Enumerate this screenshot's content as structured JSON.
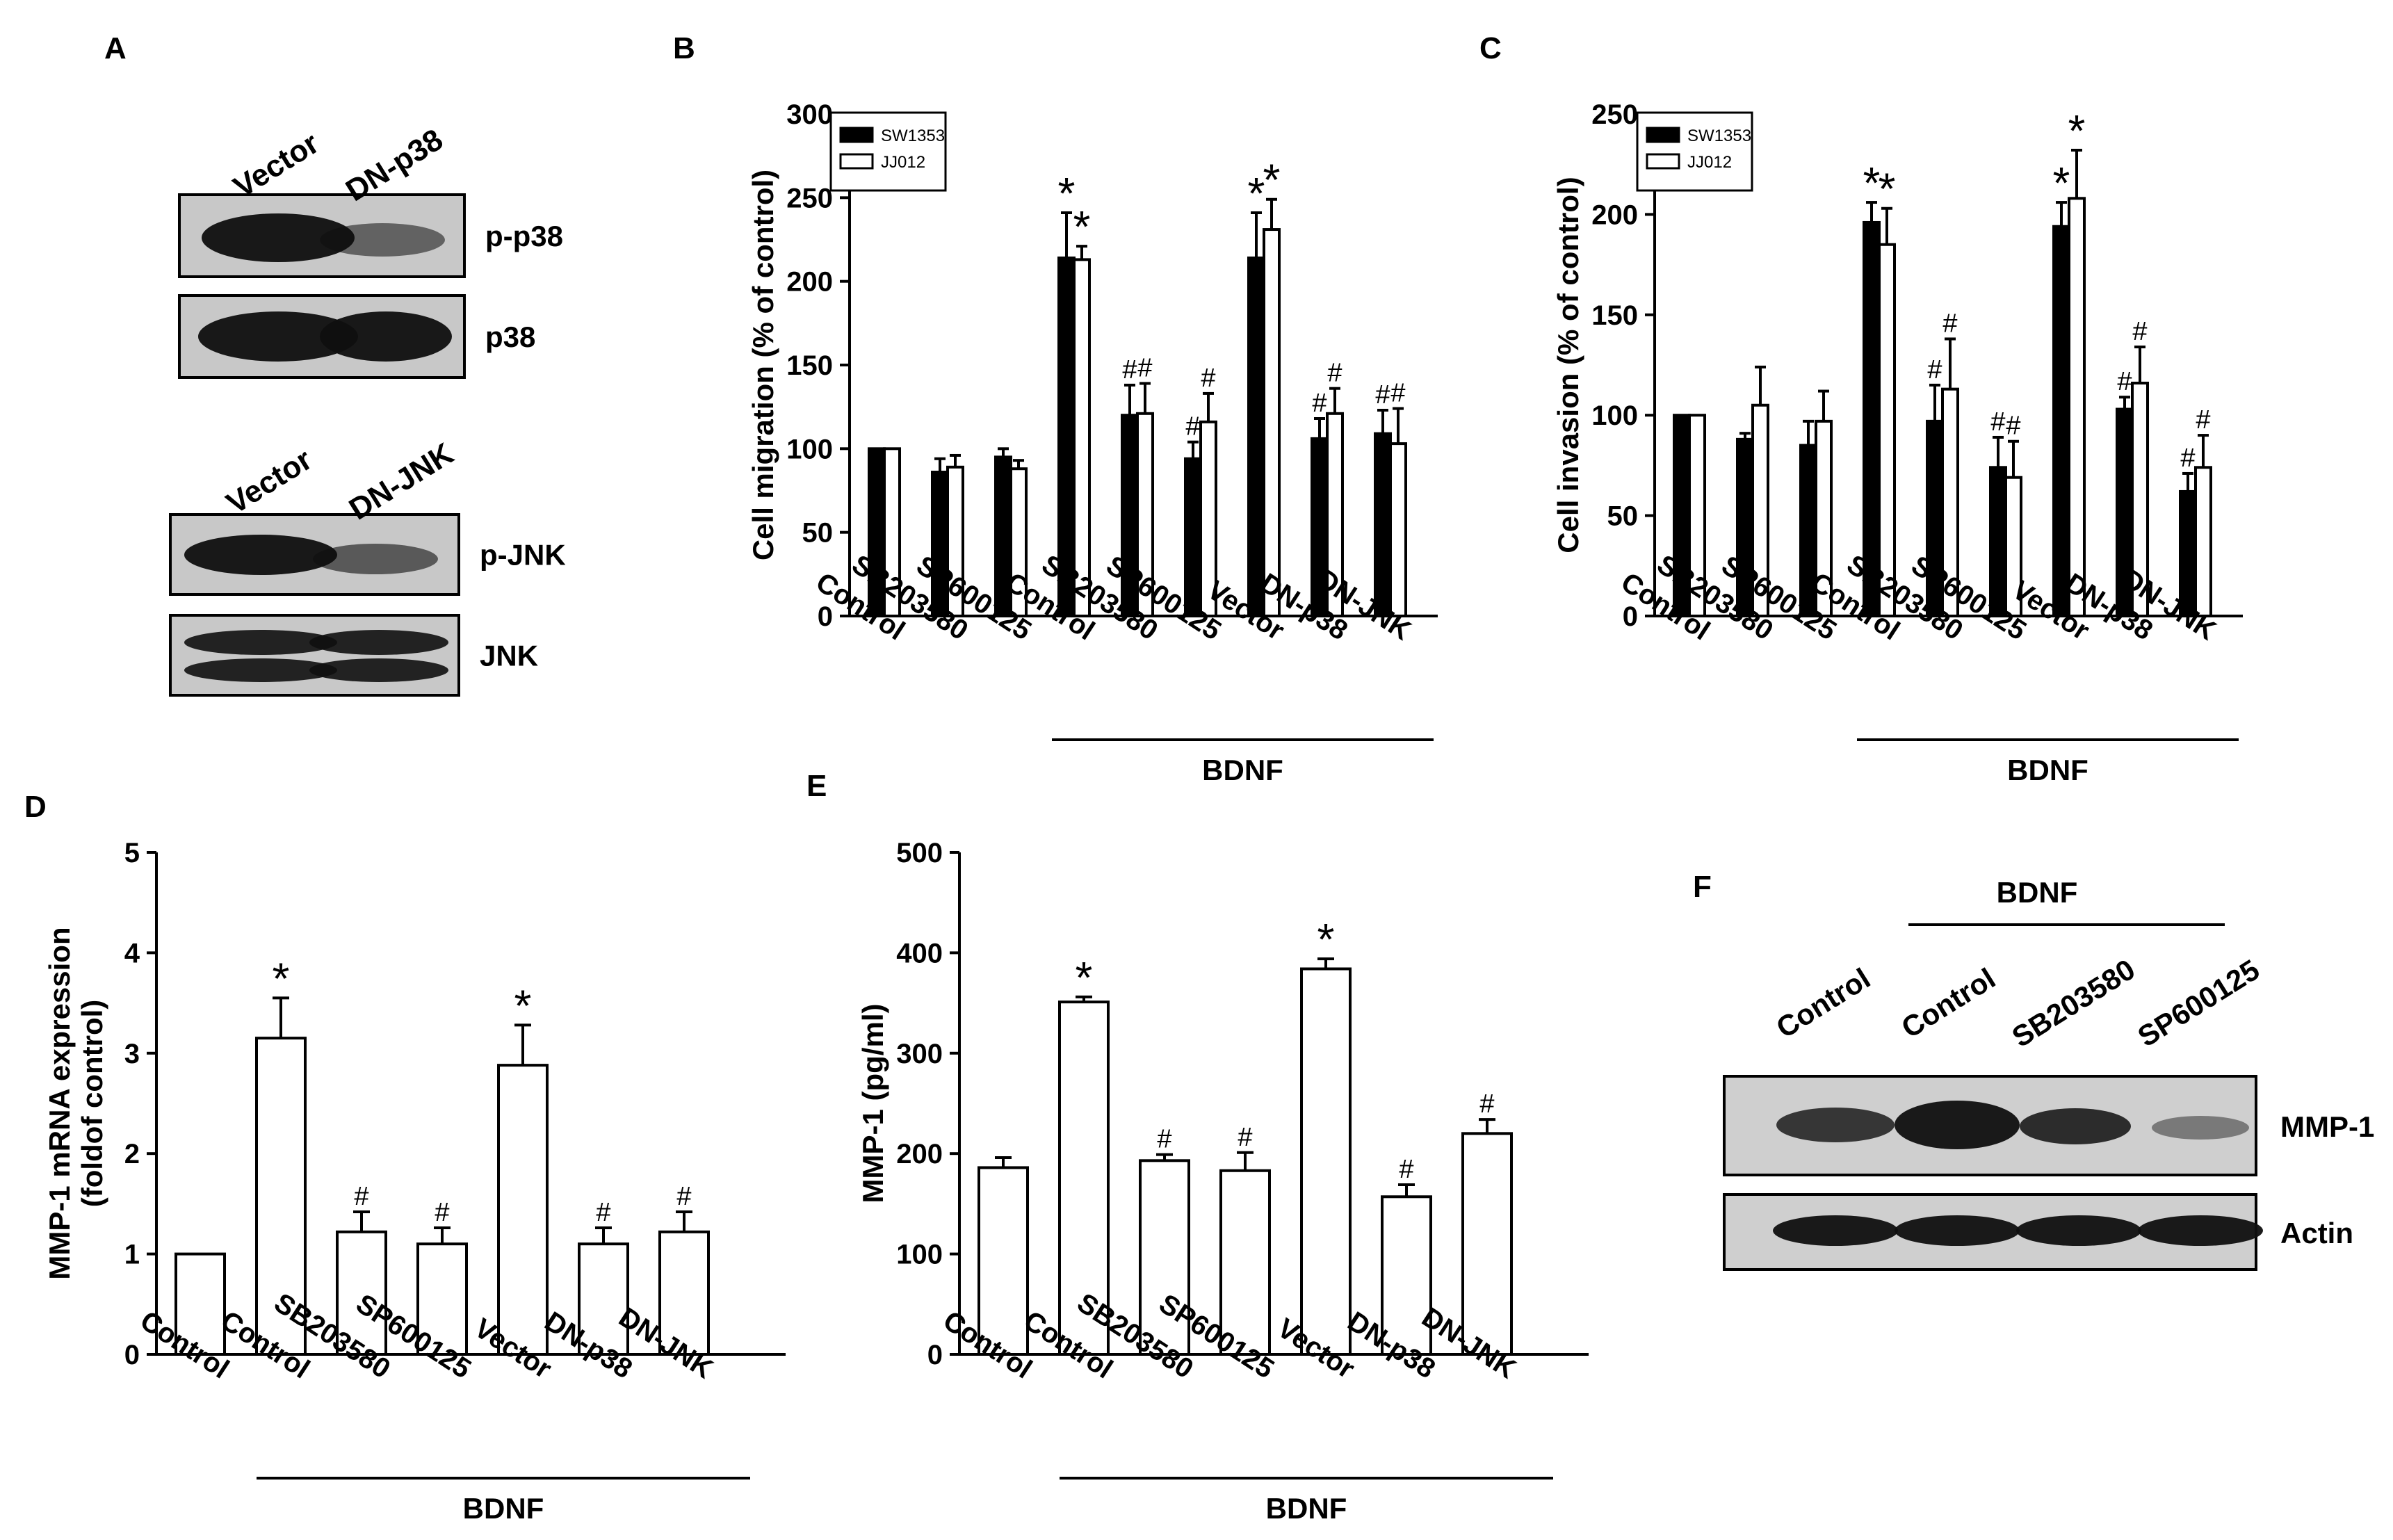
{
  "panel_letters": {
    "A": "A",
    "B": "B",
    "C": "C",
    "D": "D",
    "E": "E",
    "F": "F"
  },
  "blot_a": {
    "top": {
      "lanes": [
        "Vector",
        "DN-p38"
      ],
      "rows": [
        "p-p38",
        "p38"
      ]
    },
    "bottom": {
      "lanes": [
        "Vector",
        "DN-JNK"
      ],
      "rows": [
        "p-JNK",
        "JNK"
      ]
    }
  },
  "blot_f": {
    "bracket_label": "BDNF",
    "lanes": [
      "Control",
      "Control",
      "SB203580",
      "SP600125"
    ],
    "rows": [
      "MMP-1",
      "Actin"
    ]
  },
  "chart_data": [
    {
      "panel": "B",
      "type": "bar",
      "ylabel": "Cell migration (% of control)",
      "ylim": [
        0,
        300
      ],
      "yticks": [
        "0",
        "50",
        "100",
        "150",
        "200",
        "250",
        "300"
      ],
      "categories": [
        "Control",
        "SB203580",
        "SP600125",
        "Control",
        "SB203580",
        "SP600125",
        "Vector",
        "DN-p38",
        "DN-JNK"
      ],
      "series": [
        {
          "name": "SW1353",
          "color": "#000000",
          "values": [
            100,
            86,
            95,
            214,
            120,
            94,
            214,
            106,
            109
          ],
          "errors": [
            0,
            8,
            5,
            27,
            18,
            10,
            27,
            12,
            14
          ],
          "annotations": [
            "",
            "",
            "",
            "*",
            "#",
            "#",
            "*",
            "#",
            "#"
          ]
        },
        {
          "name": "JJ012",
          "color": "#ffffff",
          "values": [
            100,
            89,
            88,
            213,
            121,
            116,
            231,
            121,
            103
          ],
          "errors": [
            0,
            7,
            5,
            8,
            18,
            17,
            18,
            15,
            21
          ],
          "annotations": [
            "",
            "",
            "",
            "*",
            "#",
            "#",
            "*",
            "#",
            "#"
          ]
        }
      ],
      "bracket": {
        "label": "BDNF",
        "from": 3,
        "to": 8
      },
      "legend_position": "top-left"
    },
    {
      "panel": "C",
      "type": "bar",
      "ylabel": "Cell invasion (% of control)",
      "ylim": [
        0,
        250
      ],
      "yticks": [
        "0",
        "50",
        "100",
        "150",
        "200",
        "250"
      ],
      "categories": [
        "Control",
        "SB203580",
        "SP600125",
        "Control",
        "SB203580",
        "SP600125",
        "Vector",
        "DN-p38",
        "DN-JNK"
      ],
      "series": [
        {
          "name": "SW1353",
          "color": "#000000",
          "values": [
            100,
            88,
            85,
            196,
            97,
            74,
            194,
            103,
            62
          ],
          "errors": [
            0,
            3,
            12,
            10,
            18,
            15,
            12,
            6,
            9
          ],
          "annotations": [
            "",
            "",
            "",
            "*",
            "#",
            "#",
            "*",
            "#",
            "#"
          ]
        },
        {
          "name": "JJ012",
          "color": "#ffffff",
          "values": [
            100,
            105,
            97,
            185,
            113,
            69,
            208,
            116,
            74
          ],
          "errors": [
            0,
            19,
            15,
            18,
            25,
            18,
            24,
            18,
            16
          ],
          "annotations": [
            "",
            "",
            "",
            "*",
            "#",
            "#",
            "*",
            "#",
            "#"
          ]
        }
      ],
      "bracket": {
        "label": "BDNF",
        "from": 3,
        "to": 8
      },
      "legend_position": "top-left"
    },
    {
      "panel": "D",
      "type": "bar",
      "ylabel": "MMP-1 mRNA expression",
      "ylabel2": "(foldof control)",
      "ylim": [
        0,
        5
      ],
      "yticks": [
        "0",
        "1",
        "2",
        "3",
        "4",
        "5"
      ],
      "categories": [
        "Control",
        "Control",
        "SB203580",
        "SP600125",
        "Vector",
        "DN-p38",
        "DN-JNK"
      ],
      "series": [
        {
          "color": "#ffffff",
          "values": [
            1.0,
            3.15,
            1.22,
            1.1,
            2.88,
            1.1,
            1.22
          ],
          "errors": [
            0,
            0.4,
            0.2,
            0.16,
            0.4,
            0.16,
            0.2
          ],
          "annotations": [
            "",
            "*",
            "#",
            "#",
            "*",
            "#",
            "#"
          ]
        }
      ],
      "bracket": {
        "label": "BDNF",
        "from": 1,
        "to": 6
      }
    },
    {
      "panel": "E",
      "type": "bar",
      "ylabel": "MMP-1 (pg/ml)",
      "ylim": [
        0,
        500
      ],
      "yticks": [
        "0",
        "100",
        "200",
        "300",
        "400",
        "500"
      ],
      "categories": [
        "Control",
        "Control",
        "SB203580",
        "SP600125",
        "Vector",
        "DN-p38",
        "DN-JNK"
      ],
      "series": [
        {
          "color": "#ffffff",
          "values": [
            186,
            351,
            193,
            183,
            384,
            157,
            220
          ],
          "errors": [
            10,
            5,
            6,
            18,
            10,
            12,
            14
          ],
          "annotations": [
            "",
            "*",
            "#",
            "#",
            "*",
            "#",
            "#"
          ]
        }
      ],
      "bracket": {
        "label": "BDNF",
        "from": 1,
        "to": 6
      }
    }
  ]
}
